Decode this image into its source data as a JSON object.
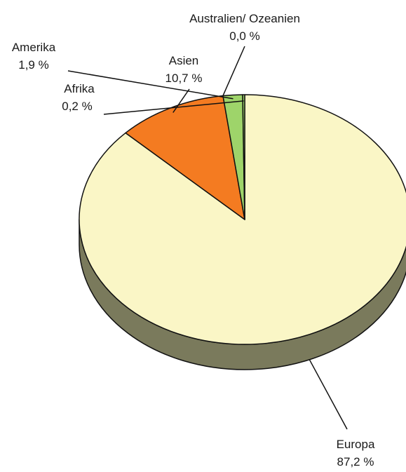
{
  "chart_data": {
    "type": "pie",
    "style": "3d",
    "categories": [
      "Europa",
      "Asien",
      "Australien/ Ozeanien",
      "Amerika",
      "Afrika"
    ],
    "values": [
      87.2,
      10.7,
      0.0,
      1.9,
      0.2
    ],
    "value_labels": [
      "87,2 %",
      "10,7 %",
      "0,0 %",
      "1,9 %",
      "0,2 %"
    ],
    "colors": [
      "#faf6c6",
      "#f47b21",
      "#ffffff",
      "#9ed46a",
      "#9ed46a"
    ],
    "side_color": "#7a7a5c",
    "legend": "none"
  }
}
